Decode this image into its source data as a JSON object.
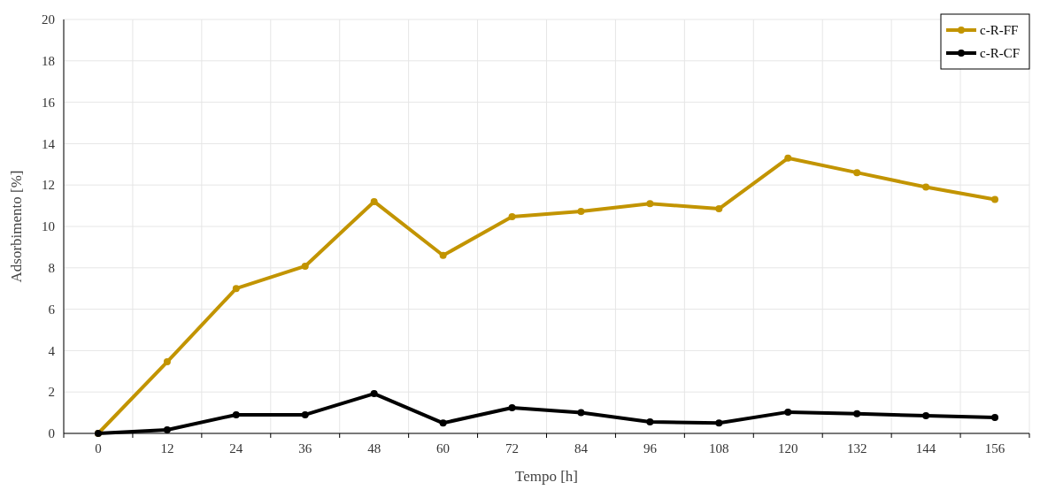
{
  "chart_data": {
    "type": "line",
    "xlabel": "Tempo [h]",
    "ylabel": "Adsorbimento [%]",
    "categories": [
      "0",
      "12",
      "24",
      "36",
      "48",
      "60",
      "72",
      "84",
      "96",
      "108",
      "120",
      "132",
      "144",
      "156"
    ],
    "series": [
      {
        "name": "c-R-FF",
        "color": "#c29400",
        "values": [
          0,
          3.46,
          7.0,
          8.08,
          11.2,
          8.6,
          10.47,
          10.73,
          11.1,
          10.85,
          13.3,
          12.6,
          11.9,
          11.3
        ]
      },
      {
        "name": "c-R-CF",
        "color": "#000000",
        "values": [
          0,
          0.17,
          0.9,
          0.9,
          1.92,
          0.5,
          1.24,
          1.0,
          0.56,
          0.5,
          1.03,
          0.95,
          0.85,
          0.77
        ]
      }
    ],
    "ylim": [
      0,
      20
    ],
    "yticks": [
      0,
      2,
      4,
      6,
      8,
      10,
      12,
      14,
      16,
      18,
      20
    ],
    "grid": true,
    "legend": "top right",
    "marker": "circle",
    "line_style": "solid"
  }
}
